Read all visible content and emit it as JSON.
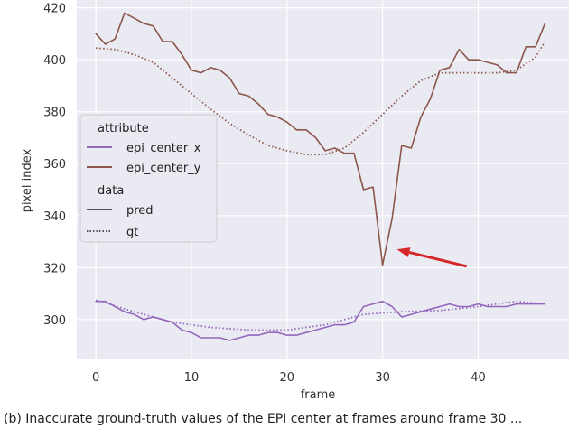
{
  "chart_data": {
    "type": "line",
    "xlabel": "frame",
    "ylabel": "pixel index",
    "xlim": [
      -2,
      49.5
    ],
    "ylim": [
      285,
      423
    ],
    "x_ticks": [
      0,
      10,
      20,
      30,
      40
    ],
    "y_ticks": [
      300,
      320,
      340,
      360,
      380,
      400,
      420
    ],
    "grid": true,
    "legend_placement": "center-left",
    "legend": {
      "groups": [
        {
          "title": "attribute",
          "entries": [
            {
              "label": "epi_center_x",
              "color": "#9467bd",
              "style": "solid"
            },
            {
              "label": "epi_center_y",
              "color": "#8c564b",
              "style": "solid"
            }
          ]
        },
        {
          "title": "data",
          "entries": [
            {
              "label": "pred",
              "color": "#222222",
              "style": "solid"
            },
            {
              "label": "gt",
              "color": "#222222",
              "style": "dotted"
            }
          ]
        }
      ]
    },
    "series": [
      {
        "attribute": "epi_center_y",
        "data": "pred",
        "color": "#8c564b",
        "style": "solid",
        "x": [
          0,
          1,
          2,
          3,
          4,
          5,
          6,
          7,
          8,
          9,
          10,
          11,
          12,
          13,
          14,
          15,
          16,
          17,
          18,
          19,
          20,
          21,
          22,
          23,
          24,
          25,
          26,
          27,
          28,
          29,
          30,
          31,
          32,
          33,
          34,
          35,
          36,
          37,
          38,
          39,
          40,
          41,
          42,
          43,
          44,
          45,
          46,
          47
        ],
        "y": [
          410,
          406,
          408,
          418,
          416,
          414,
          413,
          407,
          407,
          402,
          396,
          395,
          397,
          396,
          393,
          387,
          386,
          383,
          379,
          378,
          376,
          373,
          373,
          370,
          365,
          366,
          364,
          364,
          350,
          351,
          321,
          339,
          367,
          366,
          378,
          385,
          396,
          397,
          404,
          400,
          400,
          399,
          398,
          395,
          395,
          405,
          405,
          414
        ]
      },
      {
        "attribute": "epi_center_y",
        "data": "gt",
        "color": "#8c564b",
        "style": "dotted",
        "x": [
          0,
          2,
          4,
          6,
          8,
          10,
          12,
          14,
          16,
          18,
          20,
          22,
          24,
          26,
          28,
          30,
          32,
          34,
          36,
          38,
          40,
          42,
          44,
          46,
          47
        ],
        "y": [
          404.5,
          404,
          402,
          399,
          393,
          387,
          381,
          375.5,
          371,
          367,
          365,
          363.5,
          363.5,
          366,
          372,
          379,
          386,
          392,
          395,
          395,
          395,
          395,
          396,
          401,
          407
        ]
      },
      {
        "attribute": "epi_center_x",
        "data": "pred",
        "color": "#9467bd",
        "style": "solid",
        "x": [
          0,
          1,
          2,
          3,
          4,
          5,
          6,
          7,
          8,
          9,
          10,
          11,
          12,
          13,
          14,
          15,
          16,
          17,
          18,
          19,
          20,
          21,
          22,
          23,
          24,
          25,
          26,
          27,
          28,
          29,
          30,
          31,
          32,
          33,
          34,
          35,
          36,
          37,
          38,
          39,
          40,
          41,
          42,
          43,
          44,
          45,
          46,
          47
        ],
        "y": [
          307,
          307,
          305,
          303,
          302,
          300,
          301,
          300,
          299,
          296,
          295,
          293,
          293,
          293,
          292,
          293,
          294,
          294,
          295,
          295,
          294,
          294,
          295,
          296,
          297,
          298,
          298,
          299,
          305,
          306,
          307,
          305,
          301,
          302,
          303,
          304,
          305,
          306,
          305,
          305,
          306,
          305,
          305,
          305,
          306,
          306,
          306,
          306
        ]
      },
      {
        "attribute": "epi_center_x",
        "data": "gt",
        "color": "#9467bd",
        "style": "dotted",
        "x": [
          0,
          4,
          8,
          12,
          16,
          20,
          24,
          28,
          32,
          36,
          40,
          44,
          47
        ],
        "y": [
          307.5,
          303,
          299,
          297,
          296,
          296,
          298,
          302,
          303,
          303.5,
          305,
          307,
          306
        ]
      }
    ],
    "annotations": [
      {
        "type": "arrow",
        "color": "#d62728",
        "from": {
          "x": 38.8,
          "y": 320.5
        },
        "to": {
          "x": 31.5,
          "y": 327
        }
      }
    ]
  },
  "caption": "(b) Inaccurate ground-truth values of the EPI center at frames around frame 30 ..."
}
